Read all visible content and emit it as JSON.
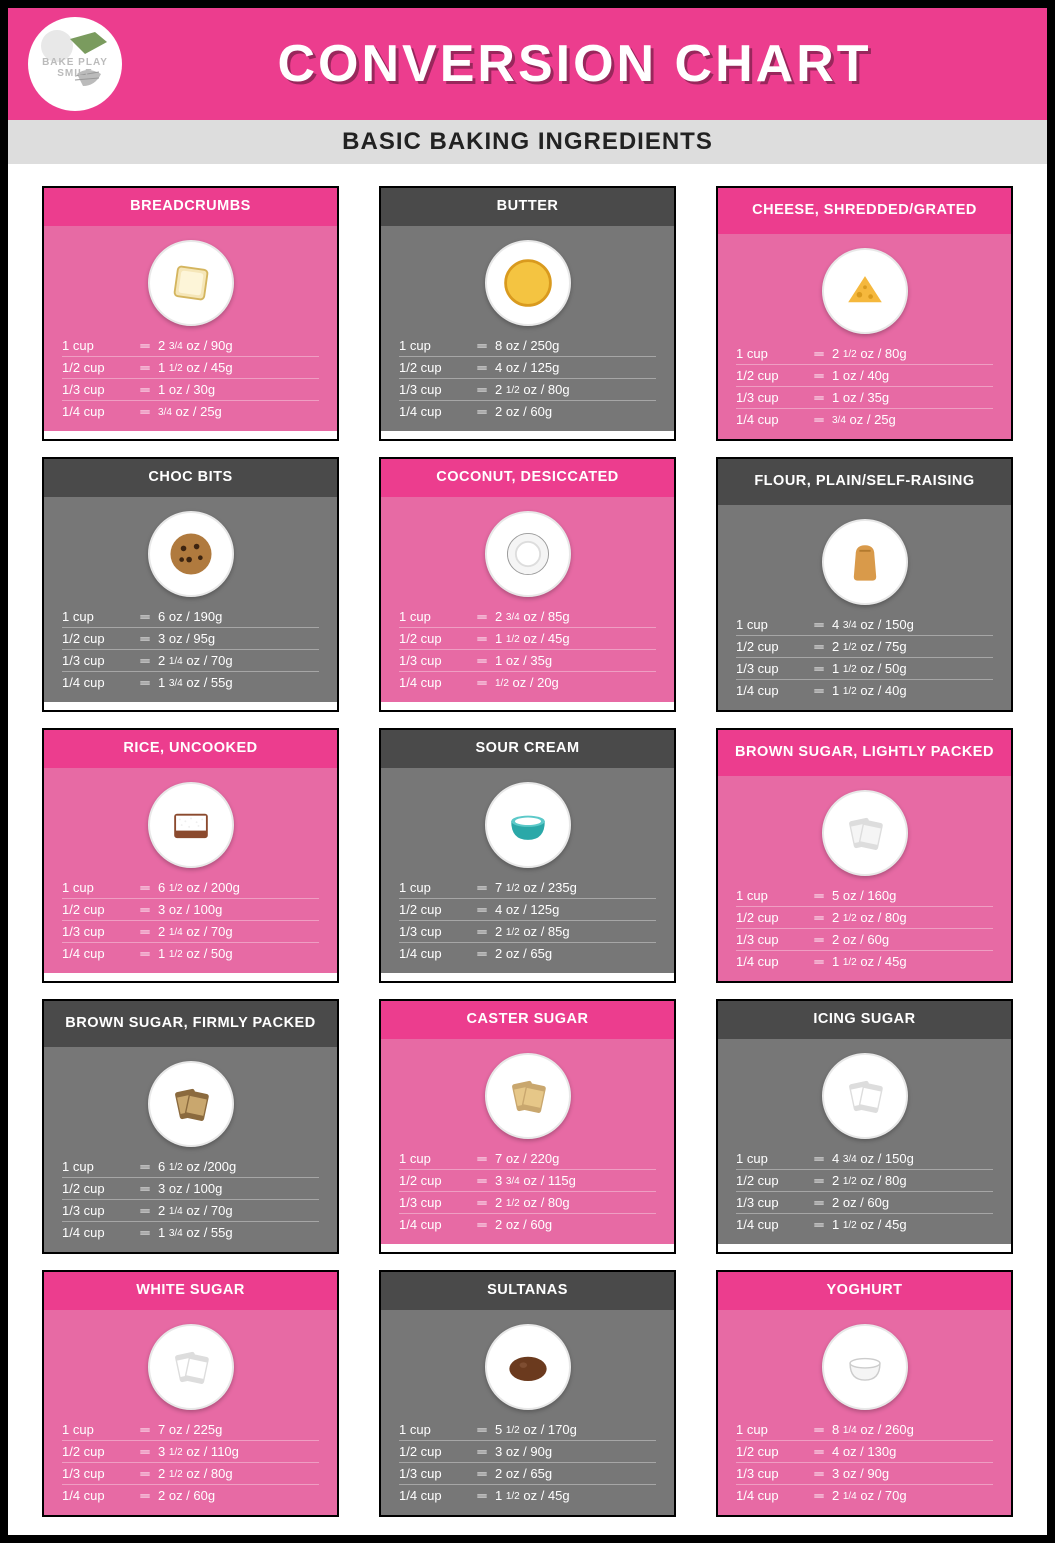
{
  "header": {
    "title": "CONVERSION CHART",
    "subtitle": "BASIC BAKING INGREDIENTS",
    "logo_text": "BAKE PLAY SMILE"
  },
  "colors": {
    "pink_header": "#ec3d8e",
    "pink_body": "#e76aa4",
    "gray_header": "#4a4a4a",
    "gray_body": "#777777",
    "subtitle_bar": "#dddddd",
    "border": "#000000",
    "text_light": "#ffffff"
  },
  "cup_labels": [
    "1 cup",
    "1/2 cup",
    "1/3 cup",
    "1/4 cup"
  ],
  "equals_symbol": "═",
  "cards": [
    {
      "name": "BREADCRUMBS",
      "theme": "pink",
      "icon": "bread",
      "rows": [
        "2 ¾ oz / 90g",
        "1 ½ oz / 45g",
        "1 oz / 30g",
        "¾ oz / 25g"
      ]
    },
    {
      "name": "BUTTER",
      "theme": "gray",
      "icon": "butter",
      "rows": [
        "8 oz / 250g",
        "4 oz / 125g",
        "2 ½ oz / 80g",
        "2 oz / 60g"
      ]
    },
    {
      "name": "CHEESE, SHREDDED/GRATED",
      "theme": "pink",
      "icon": "cheese",
      "tall": true,
      "rows": [
        "2 ½ oz / 80g",
        "1 oz / 40g",
        "1 oz / 35g",
        "¾ oz / 25g"
      ]
    },
    {
      "name": "CHOC BITS",
      "theme": "gray",
      "icon": "cookie",
      "rows": [
        "6 oz / 190g",
        "3 oz / 95g",
        "2 ¼ oz / 70g",
        "1 ¾ oz / 55g"
      ]
    },
    {
      "name": "COCONUT, DESICCATED",
      "theme": "pink",
      "icon": "coconut",
      "rows": [
        "2 ¾ oz / 85g",
        "1 ½ oz / 45g",
        "1 oz / 35g",
        "½ oz / 20g"
      ]
    },
    {
      "name": "FLOUR, PLAIN/SELF-RAISING",
      "theme": "gray",
      "icon": "flour",
      "tall": true,
      "rows": [
        "4 ¾ oz / 150g",
        "2 ½ oz / 75g",
        "1 ½ oz / 50g",
        "1 ½ oz / 40g"
      ]
    },
    {
      "name": "RICE, UNCOOKED",
      "theme": "pink",
      "icon": "rice",
      "rows": [
        "6 ½ oz / 200g",
        "3 oz / 100g",
        "2 ¼ oz / 70g",
        "1 ½ oz / 50g"
      ]
    },
    {
      "name": "SOUR CREAM",
      "theme": "gray",
      "icon": "bowl",
      "rows": [
        "7 ½ oz / 235g",
        "4 oz / 125g",
        "2 ½ oz / 85g",
        "2 oz / 65g"
      ]
    },
    {
      "name": "BROWN SUGAR, LIGHTLY PACKED",
      "theme": "pink",
      "icon": "packets-light",
      "tall": true,
      "rows": [
        "5 oz / 160g",
        "2 ½ oz / 80g",
        "2 oz / 60g",
        "1 ½ oz / 45g"
      ]
    },
    {
      "name": "BROWN SUGAR, FIRMLY PACKED",
      "theme": "gray",
      "icon": "packets-dark",
      "tall": true,
      "rows": [
        "6 ½ oz /200g",
        "3 oz / 100g",
        "2 ¼ oz / 70g",
        "1 ¾ oz / 55g"
      ]
    },
    {
      "name": "CASTER SUGAR",
      "theme": "pink",
      "icon": "packets-tan",
      "rows": [
        "7 oz / 220g",
        "3 ¾ oz / 115g",
        "2 ½ oz / 80g",
        "2 oz / 60g"
      ]
    },
    {
      "name": "ICING SUGAR",
      "theme": "gray",
      "icon": "packets-white",
      "rows": [
        "4 ¾ oz / 150g",
        "2 ½ oz / 80g",
        "2 oz / 60g",
        "1 ½ oz / 45g"
      ]
    },
    {
      "name": "WHITE SUGAR",
      "theme": "pink",
      "icon": "packets-white",
      "rows": [
        "7 oz / 225g",
        "3 ½ oz / 110g",
        "2 ½ oz / 80g",
        "2 oz / 60g"
      ]
    },
    {
      "name": "SULTANAS",
      "theme": "gray",
      "icon": "sultana",
      "rows": [
        "5 ½ oz / 170g",
        "3 oz / 90g",
        "2 oz / 65g",
        "1 ½ oz / 45g"
      ]
    },
    {
      "name": "YOGHURT",
      "theme": "pink",
      "icon": "yoghurt",
      "rows": [
        "8 ¼ oz / 260g",
        "4 oz / 130g",
        "3 oz / 90g",
        "2 ¼ oz / 70g"
      ]
    }
  ]
}
